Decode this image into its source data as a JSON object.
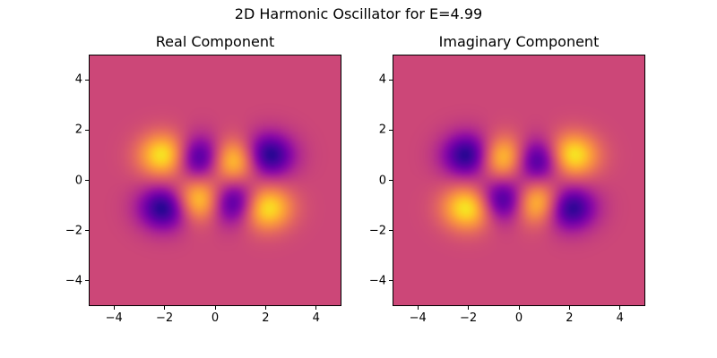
{
  "title": "2D Harmonic Oscillator for E=4.99",
  "chart_data": {
    "type": "heatmap",
    "colormap": "plasma",
    "panels": [
      {
        "title": "Real Component",
        "xlim": [
          -5,
          5
        ],
        "ylim": [
          -5,
          5
        ],
        "xticks": [
          "−4",
          "−2",
          "0",
          "2",
          "4"
        ],
        "yticks": [
          "4",
          "2",
          "0",
          "−2",
          "−4"
        ],
        "lobes": [
          {
            "x": -2.0,
            "y": 1.0,
            "sign": "positive"
          },
          {
            "x": -0.6,
            "y": 0.9,
            "sign": "negative"
          },
          {
            "x": 0.7,
            "y": 0.8,
            "sign": "positive"
          },
          {
            "x": 2.1,
            "y": 1.0,
            "sign": "negative"
          },
          {
            "x": -2.0,
            "y": -1.1,
            "sign": "negative"
          },
          {
            "x": -0.6,
            "y": -0.8,
            "sign": "positive"
          },
          {
            "x": 0.7,
            "y": -0.9,
            "sign": "negative"
          },
          {
            "x": 2.0,
            "y": -1.1,
            "sign": "positive"
          }
        ]
      },
      {
        "title": "Imaginary Component",
        "xlim": [
          -5,
          5
        ],
        "ylim": [
          -5,
          5
        ],
        "xticks": [
          "−4",
          "−2",
          "0",
          "2",
          "4"
        ],
        "yticks": [
          "4",
          "2",
          "0",
          "−2",
          "−4"
        ],
        "lobes": [
          {
            "x": -2.0,
            "y": 1.0,
            "sign": "negative"
          },
          {
            "x": -0.6,
            "y": 0.9,
            "sign": "positive"
          },
          {
            "x": 0.7,
            "y": 0.8,
            "sign": "negative"
          },
          {
            "x": 2.1,
            "y": 1.0,
            "sign": "positive"
          },
          {
            "x": -2.0,
            "y": -1.1,
            "sign": "positive"
          },
          {
            "x": -0.6,
            "y": -0.8,
            "sign": "negative"
          },
          {
            "x": 0.7,
            "y": -0.9,
            "sign": "positive"
          },
          {
            "x": 2.0,
            "y": -1.1,
            "sign": "negative"
          }
        ]
      }
    ]
  }
}
